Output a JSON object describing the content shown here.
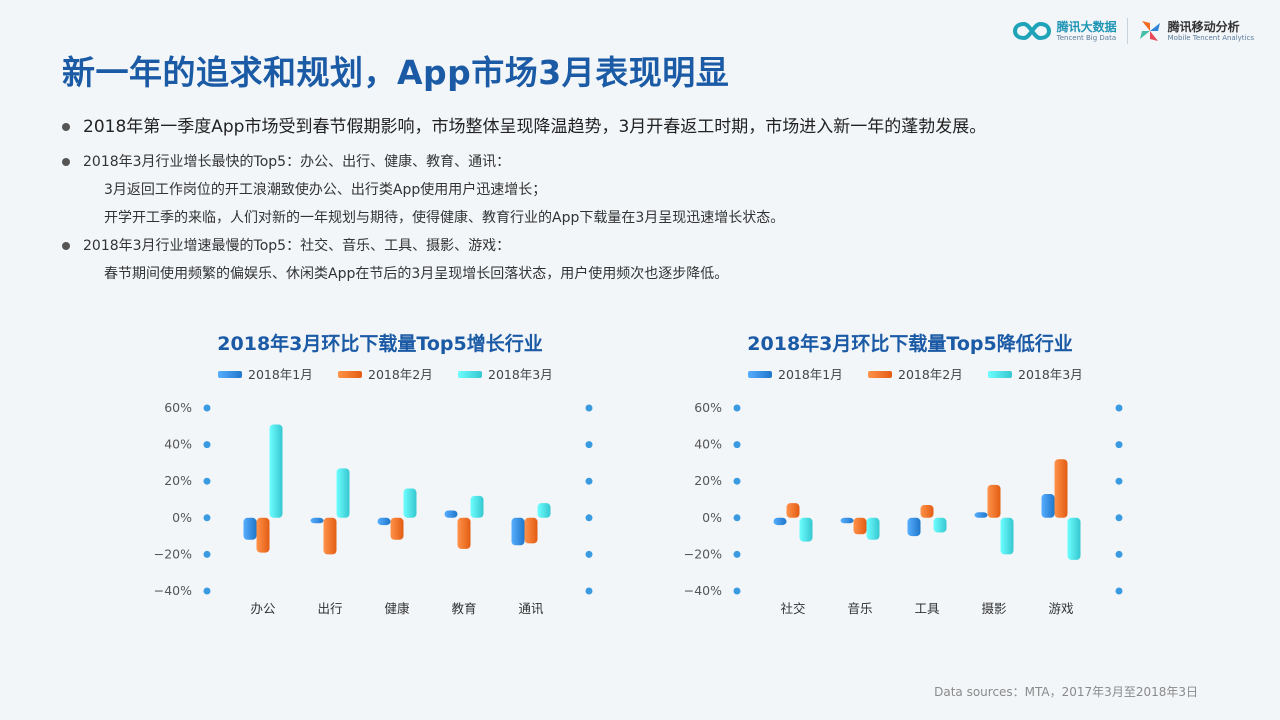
{
  "logos": {
    "tencent_big_data": {
      "main": "腾讯大数据",
      "sub": "Tencent Big Data"
    },
    "mta": {
      "main": "腾讯移动分析",
      "sub": "Mobile Tencent Analytics"
    }
  },
  "title": "新一年的追求和规划，App市场3月表现明显",
  "bullets": {
    "b1": "2018年第一季度App市场受到春节假期影响，市场整体呈现降温趋势，3月开春返工时期，市场进入新一年的蓬勃发展。",
    "b2": "2018年3月行业增长最快的Top5：办公、出行、健康、教育、通讯：",
    "b2_sub1": "3月返回工作岗位的开工浪潮致使办公、出行类App使用用户迅速增长；",
    "b2_sub2": "开学开工季的来临，人们对新的一年规划与期待，使得健康、教育行业的App下载量在3月呈现迅速增长状态。",
    "b3": "2018年3月行业增速最慢的Top5：社交、音乐、工具、摄影、游戏：",
    "b3_sub1": "春节期间使用频繁的偏娱乐、休闲类App在节后的3月呈现增长回落状态，用户使用频次也逐步降低。"
  },
  "colors": {
    "jan": "#2f86d9",
    "feb": "#f26b22",
    "mar": "#45d6df",
    "title": "#1b5aa5",
    "dot": "#3a9be0"
  },
  "chart_data": [
    {
      "type": "bar",
      "title": "2018年3月环比下载量Top5增长行业",
      "categories": [
        "办公",
        "出行",
        "健康",
        "教育",
        "通讯"
      ],
      "series": [
        {
          "name": "2018年1月",
          "values": [
            -12,
            -3,
            -4,
            4,
            -15
          ]
        },
        {
          "name": "2018年2月",
          "values": [
            -19,
            -20,
            -12,
            -17,
            -14
          ]
        },
        {
          "name": "2018年3月",
          "values": [
            51,
            27,
            16,
            12,
            8
          ]
        }
      ],
      "ylim": [
        -40,
        60
      ],
      "yticks": [
        "60%",
        "40%",
        "20%",
        "0%",
        "−20%",
        "−40%"
      ],
      "legend": "top",
      "grid": false
    },
    {
      "type": "bar",
      "title": "2018年3月环比下载量Top5降低行业",
      "categories": [
        "社交",
        "音乐",
        "工具",
        "摄影",
        "游戏"
      ],
      "series": [
        {
          "name": "2018年1月",
          "values": [
            -4,
            -3,
            -10,
            3,
            13
          ]
        },
        {
          "name": "2018年2月",
          "values": [
            8,
            -9,
            7,
            18,
            32
          ]
        },
        {
          "name": "2018年3月",
          "values": [
            -13,
            -12,
            -8,
            -20,
            -23
          ]
        }
      ],
      "ylim": [
        -40,
        60
      ],
      "yticks": [
        "60%",
        "40%",
        "20%",
        "0%",
        "−20%",
        "−40%"
      ],
      "legend": "top",
      "grid": false
    }
  ],
  "source": "Data sources：MTA，2017年3月至2018年3日"
}
